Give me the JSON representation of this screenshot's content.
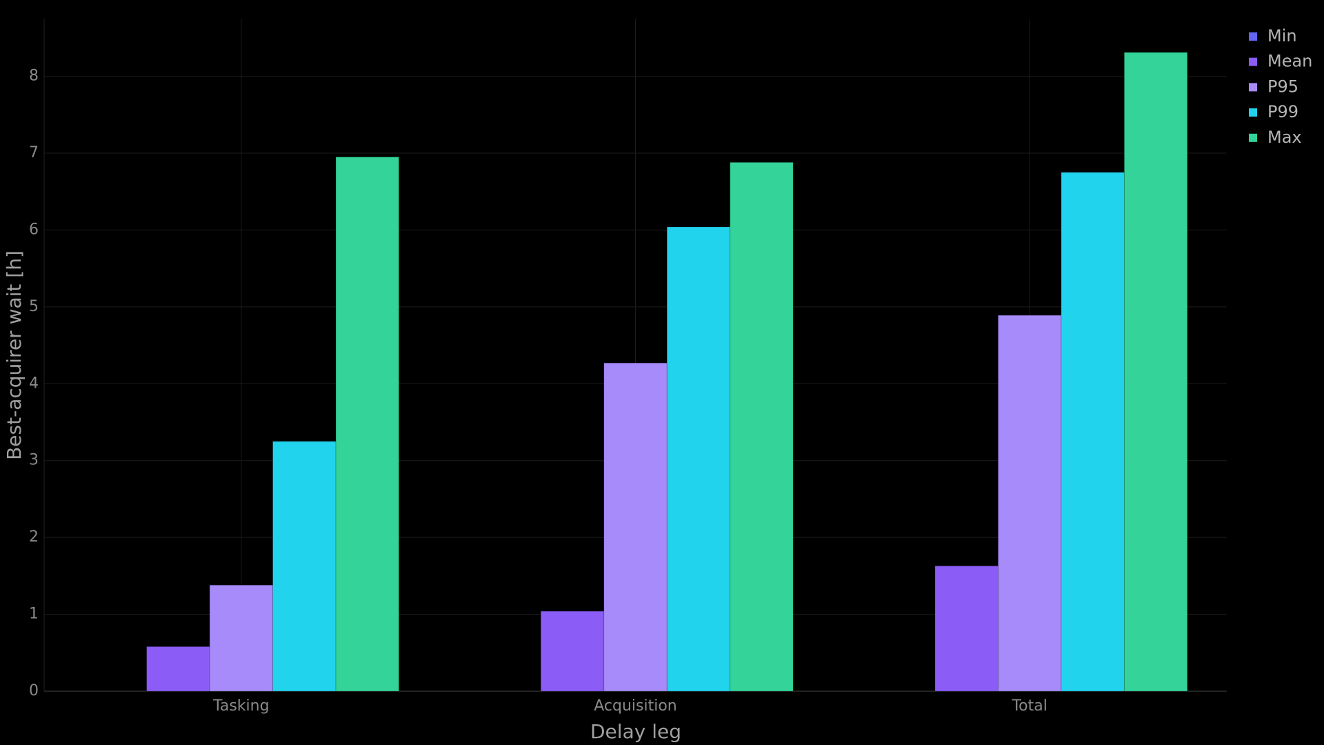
{
  "chart_data": {
    "type": "bar",
    "x_label": "Delay leg",
    "y_label": "Best-acquirer wait [h]",
    "categories": [
      "Tasking",
      "Acquisition",
      "Total"
    ],
    "series": [
      {
        "name": "Min",
        "color": "#6366f1",
        "values": [
          0,
          0,
          0
        ]
      },
      {
        "name": "Mean",
        "color": "#8b5cf6",
        "values": [
          0.58,
          1.04,
          1.63
        ]
      },
      {
        "name": "P95",
        "color": "#a78bfa",
        "values": [
          1.38,
          4.27,
          4.89
        ]
      },
      {
        "name": "P99",
        "color": "#22d3ee",
        "values": [
          3.25,
          6.04,
          6.75
        ]
      },
      {
        "name": "Max",
        "color": "#34d399",
        "values": [
          6.95,
          6.88,
          8.31
        ]
      }
    ],
    "ylim": [
      0,
      8.75
    ],
    "yticks": [
      0,
      1,
      2,
      3,
      4,
      5,
      6,
      7,
      8
    ],
    "grid": true,
    "legend": "upper right"
  }
}
